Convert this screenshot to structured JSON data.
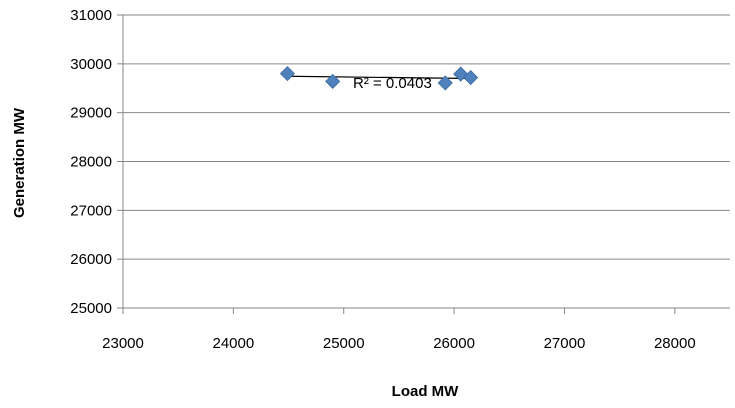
{
  "chart_data": {
    "type": "scatter",
    "title": "",
    "xlabel": "Load MW",
    "ylabel": "Generation MW",
    "xlim": [
      23000,
      28500
    ],
    "ylim": [
      25000,
      31000
    ],
    "x_ticks": [
      "23000",
      "24000",
      "25000",
      "26000",
      "27000",
      "28000"
    ],
    "y_ticks": [
      "25000",
      "26000",
      "27000",
      "28000",
      "29000",
      "30000",
      "31000"
    ],
    "grid": "horizontal",
    "legend": "none",
    "series": [
      {
        "points": [
          {
            "x": 24490,
            "y": 29800
          },
          {
            "x": 24900,
            "y": 29640
          },
          {
            "x": 25920,
            "y": 29610
          },
          {
            "x": 26060,
            "y": 29790
          },
          {
            "x": 26150,
            "y": 29720
          }
        ],
        "marker": "diamond",
        "color": "#4f81bd"
      }
    ],
    "trendline": {
      "type": "linear",
      "x_start": 24490,
      "x_end": 26150,
      "y_start": 29745,
      "y_end": 29700,
      "color": "#000000",
      "label": "R² = 0.0403"
    }
  }
}
